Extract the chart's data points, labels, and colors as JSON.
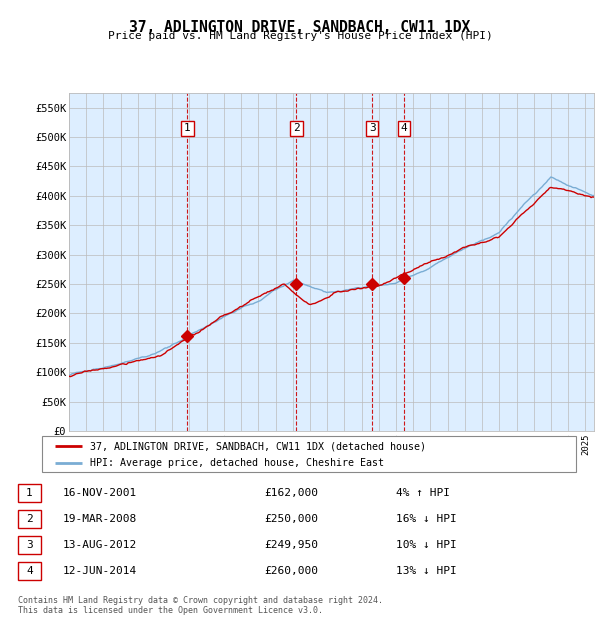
{
  "title": "37, ADLINGTON DRIVE, SANDBACH, CW11 1DX",
  "subtitle": "Price paid vs. HM Land Registry's House Price Index (HPI)",
  "ylim": [
    0,
    575000
  ],
  "yticks": [
    0,
    50000,
    100000,
    150000,
    200000,
    250000,
    300000,
    350000,
    400000,
    450000,
    500000,
    550000
  ],
  "ytick_labels": [
    "£0",
    "£50K",
    "£100K",
    "£150K",
    "£200K",
    "£250K",
    "£300K",
    "£350K",
    "£400K",
    "£450K",
    "£500K",
    "£550K"
  ],
  "sale_decimal": [
    2001.876,
    2008.212,
    2012.618,
    2014.449
  ],
  "sale_prices": [
    162000,
    250000,
    249950,
    260000
  ],
  "sale_labels": [
    "1",
    "2",
    "3",
    "4"
  ],
  "legend_red": "37, ADLINGTON DRIVE, SANDBACH, CW11 1DX (detached house)",
  "legend_blue": "HPI: Average price, detached house, Cheshire East",
  "table_rows": [
    [
      "1",
      "16-NOV-2001",
      "£162,000",
      "4% ↑ HPI"
    ],
    [
      "2",
      "19-MAR-2008",
      "£250,000",
      "16% ↓ HPI"
    ],
    [
      "3",
      "13-AUG-2012",
      "£249,950",
      "10% ↓ HPI"
    ],
    [
      "4",
      "12-JUN-2014",
      "£260,000",
      "13% ↓ HPI"
    ]
  ],
  "footnote": "Contains HM Land Registry data © Crown copyright and database right 2024.\nThis data is licensed under the Open Government Licence v3.0.",
  "red_color": "#cc0000",
  "blue_color": "#7aadd4",
  "grid_color": "#bbbbbb",
  "highlight_fill": "#ddeeff",
  "xlim_start": 1995,
  "xlim_end": 2025.5
}
